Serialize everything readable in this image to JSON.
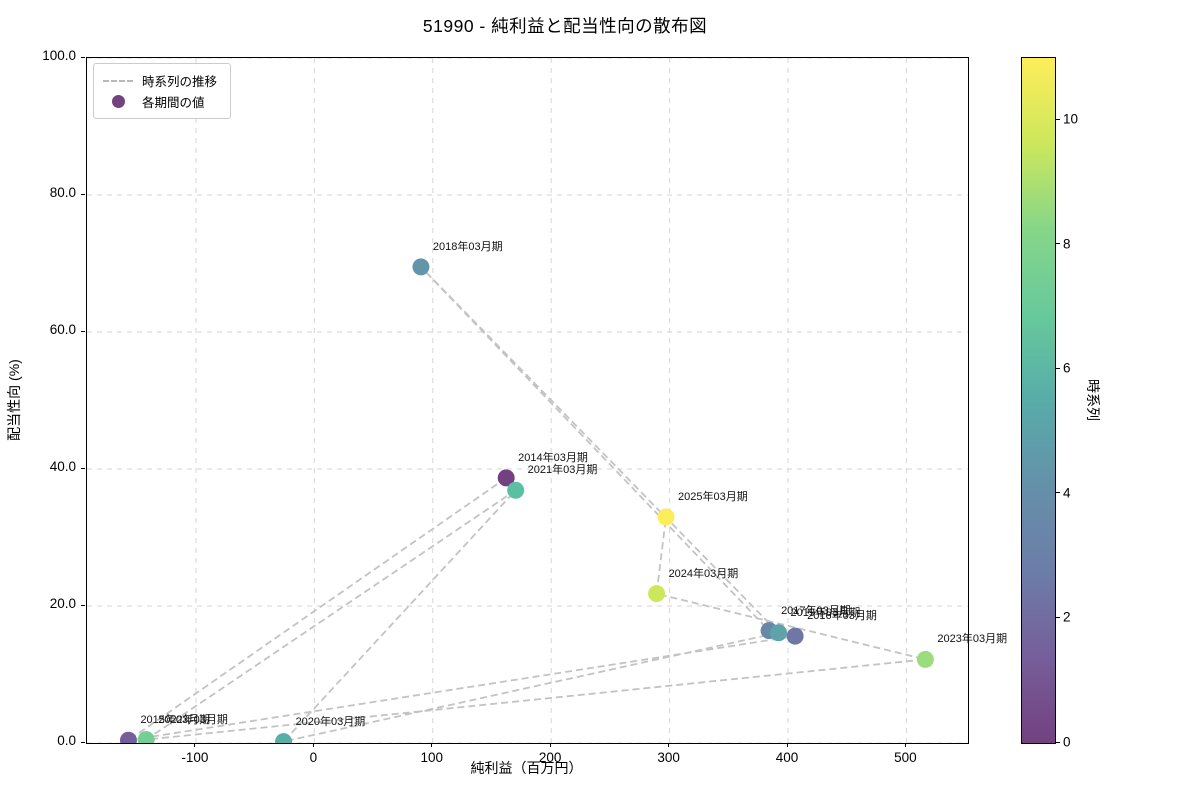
{
  "title": "51990 - 純利益と配当性向の散布図",
  "chart_data": {
    "type": "scatter",
    "title": "51990 - 純利益と配当性向の散布図",
    "xlabel": "純利益（百万円）",
    "ylabel": "配当性向 (%)",
    "xlim": [
      -192,
      552
    ],
    "ylim": [
      0,
      100
    ],
    "xticks": [
      -100,
      0,
      100,
      200,
      300,
      400,
      500
    ],
    "yticks": [
      0,
      20,
      40,
      60,
      80,
      100
    ],
    "ytick_format_decimals": 1,
    "grid": true,
    "connect_points_in_order": true,
    "points": [
      {
        "label": "2014年03月期",
        "x": 162,
        "y": 38.7,
        "t": 0,
        "color": "#734180"
      },
      {
        "label": "2015年03月期",
        "x": -157,
        "y": 0.4,
        "t": 1,
        "color": "#765e9a"
      },
      {
        "label": "2016年03月期",
        "x": 406,
        "y": 15.6,
        "t": 2,
        "color": "#6e77a6"
      },
      {
        "label": "2017年03月期",
        "x": 384,
        "y": 16.4,
        "t": 3,
        "color": "#6888a9"
      },
      {
        "label": "2018年03月期",
        "x": 90,
        "y": 69.5,
        "t": 4,
        "color": "#6294aa"
      },
      {
        "label": "2019年03月期",
        "x": 392,
        "y": 16.1,
        "t": 5,
        "color": "#5ca4aa"
      },
      {
        "label": "2020年03月期",
        "x": -26,
        "y": 0.2,
        "t": 6,
        "color": "#57b0a8"
      },
      {
        "label": "2021年03月期",
        "x": 170,
        "y": 36.9,
        "t": 7,
        "color": "#5bbfa2"
      },
      {
        "label": "2022年03月期",
        "x": -142,
        "y": 0.5,
        "t": 8,
        "color": "#73cf94"
      },
      {
        "label": "2023年03月期",
        "x": 516,
        "y": 12.2,
        "t": 9,
        "color": "#9bdd7d"
      },
      {
        "label": "2024年03月期",
        "x": 289,
        "y": 21.8,
        "t": 10,
        "color": "#cde75c"
      },
      {
        "label": "2025年03月期",
        "x": 297,
        "y": 33.0,
        "t": 11,
        "color": "#feed5b"
      }
    ],
    "legend": {
      "position": "upper left",
      "items": [
        {
          "label": "時系列の推移",
          "marker": "dashed-line"
        },
        {
          "label": "各期間の値",
          "marker": "circle",
          "color": "#734180"
        }
      ]
    },
    "colorbar": {
      "label": "時系列",
      "min": 0,
      "max": 11,
      "ticks": [
        0,
        2,
        4,
        6,
        8,
        10
      ],
      "colormap": "viridis",
      "gradient_stops": [
        "#734180",
        "#765e9a",
        "#6c7da8",
        "#6590aa",
        "#58aca9",
        "#67c99b",
        "#86d689",
        "#cde75c",
        "#feed5b"
      ]
    },
    "colors": {
      "grid": "#d6d6d6",
      "trail_line": "#c3c3c3",
      "axis": "#000000",
      "annotation_text": "#111111"
    }
  }
}
